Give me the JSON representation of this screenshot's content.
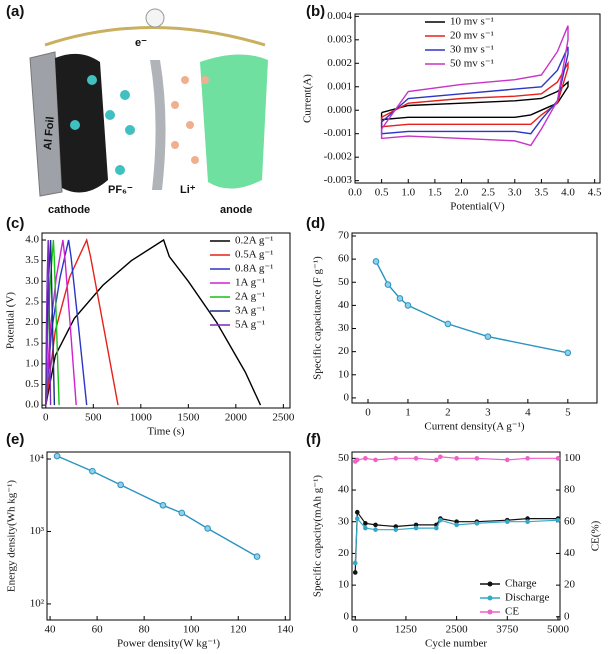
{
  "schematic": {
    "panel_label": "(a)",
    "foil": "Al Foil",
    "electron": "e⁻",
    "anion": "PF₆⁻",
    "cation": "Li⁺",
    "cathode": "cathode",
    "anode": "anode"
  },
  "chart_data": [
    {
      "type": "line",
      "panel_label": "(b)",
      "x_label": "Potential(V)",
      "y_label": "Current(A)",
      "legend": "upper left",
      "xlim": [
        0,
        4.6
      ],
      "ylim": [
        -0.0031,
        0.0041
      ],
      "xticks": [
        {
          "value": 0,
          "label": "0.0"
        },
        0.5,
        {
          "value": 1,
          "label": "1.0"
        },
        1.5,
        {
          "value": 2,
          "label": "2.0"
        },
        2.5,
        {
          "value": 3,
          "label": "3.0"
        },
        3.5,
        {
          "value": 4,
          "label": "4.0"
        },
        4.5
      ],
      "yticks": [
        -0.003,
        -0.002,
        -0.001,
        {
          "value": 0,
          "label": "0.000"
        },
        0.001,
        0.002,
        0.003,
        0.004
      ],
      "series": [
        {
          "name": "10 mv s⁻¹",
          "color": "#000000",
          "x": [
            0.5,
            1,
            2,
            3,
            3.5,
            3.8,
            4,
            4,
            3.8,
            3.5,
            3.3,
            3,
            2,
            1,
            0.5,
            0.5
          ],
          "values": [
            -0.0001,
            0.0002,
            0.0003,
            0.0004,
            0.0005,
            0.0008,
            0.0012,
            0.001,
            0.0003,
            0,
            -0.0002,
            -0.0003,
            -0.0003,
            -0.0003,
            -0.0004,
            -0.0001
          ]
        },
        {
          "name": "20 mv s⁻¹",
          "color": "#e8201c",
          "x": [
            0.5,
            1,
            2,
            3,
            3.5,
            3.8,
            4,
            4,
            3.8,
            3.5,
            3.3,
            3,
            2,
            1,
            0.5,
            0.5
          ],
          "values": [
            -0.0003,
            0.0003,
            0.0005,
            0.0006,
            0.0007,
            0.0012,
            0.002,
            0.0018,
            0.0003,
            -0.0002,
            -0.0006,
            -0.0006,
            -0.0006,
            -0.0006,
            -0.0007,
            -0.0003
          ]
        },
        {
          "name": "30 mv s⁻¹",
          "color": "#2b36c8",
          "x": [
            0.5,
            1,
            2,
            3,
            3.5,
            3.8,
            4,
            4,
            3.8,
            3.5,
            3.3,
            3,
            2,
            1,
            0.5,
            0.5
          ],
          "values": [
            -0.0005,
            0.0005,
            0.0007,
            0.0009,
            0.001,
            0.0017,
            0.0027,
            0.0024,
            0.0004,
            -0.0004,
            -0.001,
            -0.0009,
            -0.0009,
            -0.0009,
            -0.001,
            -0.0005
          ]
        },
        {
          "name": "50 mv s⁻¹",
          "color": "#c832c8",
          "x": [
            0.5,
            1,
            2,
            3,
            3.5,
            3.8,
            4,
            4,
            3.8,
            3.5,
            3.3,
            3,
            2,
            1,
            0.5,
            0.5
          ],
          "values": [
            -0.0008,
            0.0008,
            0.0011,
            0.0013,
            0.0015,
            0.0025,
            0.0036,
            0.003,
            0.0004,
            -0.0008,
            -0.0015,
            -0.0013,
            -0.0012,
            -0.0011,
            -0.0012,
            -0.0008
          ]
        }
      ]
    },
    {
      "type": "line",
      "panel_label": "(c)",
      "x_label": "Time (s)",
      "y_label": "Potential (V)",
      "legend": "upper right",
      "xlim": [
        -40,
        2570
      ],
      "ylim": [
        -0.07,
        4.17
      ],
      "xticks": [
        0,
        500,
        1000,
        1500,
        2000,
        2500
      ],
      "yticks": [
        {
          "value": 0,
          "label": "0.0"
        },
        0.5,
        {
          "value": 1,
          "label": "1.0"
        },
        1.5,
        {
          "value": 2,
          "label": "2.0"
        },
        2.5,
        {
          "value": 3,
          "label": "3.0"
        },
        3.5,
        {
          "value": 4,
          "label": "4.0"
        }
      ],
      "series": [
        {
          "name": "0.2A g⁻¹",
          "color": "#000000",
          "x": [
            0,
            100,
            300,
            600,
            900,
            1240,
            1300,
            1500,
            1800,
            2100,
            2260
          ],
          "values": [
            0,
            1.2,
            2.1,
            2.9,
            3.5,
            4,
            3.6,
            3,
            2,
            0.8,
            0
          ]
        },
        {
          "name": "0.5A g⁻¹",
          "color": "#e8201c",
          "x": [
            0,
            100,
            250,
            430,
            470,
            600,
            760
          ],
          "values": [
            0,
            1.8,
            3.1,
            4,
            3.6,
            2,
            0
          ]
        },
        {
          "name": "0.8A g⁻¹",
          "color": "#2b36c8",
          "x": [
            0,
            60,
            150,
            240,
            265,
            340,
            430
          ],
          "values": [
            0,
            1.8,
            3.1,
            4,
            3.6,
            2,
            0
          ]
        },
        {
          "name": "1A g⁻¹",
          "color": "#d020d0",
          "x": [
            0,
            45,
            110,
            180,
            200,
            255,
            320
          ],
          "values": [
            0,
            1.8,
            3.1,
            4,
            3.6,
            2,
            0
          ]
        },
        {
          "name": "2A g⁻¹",
          "color": "#19c019",
          "x": [
            0,
            20,
            50,
            80,
            88,
            112,
            140
          ],
          "values": [
            0,
            1.8,
            3.1,
            4,
            3.6,
            2,
            0
          ]
        },
        {
          "name": "3A g⁻¹",
          "color": "#1a2a8a",
          "x": [
            0,
            12,
            30,
            50,
            55,
            70,
            90
          ],
          "values": [
            0,
            1.8,
            3.1,
            4,
            3.6,
            2,
            0
          ]
        },
        {
          "name": "5A g⁻¹",
          "color": "#7a2ac0",
          "x": [
            0,
            6,
            15,
            25,
            28,
            38,
            50
          ],
          "values": [
            0,
            1.8,
            3.1,
            4,
            3.6,
            2,
            0
          ]
        }
      ]
    },
    {
      "type": "line",
      "panel_label": "(d)",
      "x_label": "Current density(A g⁻¹)",
      "y_label": "Specific capacitance (F g⁻¹)",
      "markers": true,
      "xlim": [
        -0.4,
        5.73
      ],
      "ylim": [
        -2.2,
        71.3
      ],
      "xticks": [
        0,
        1,
        2,
        3,
        4,
        5
      ],
      "yticks": [
        0,
        10,
        20,
        30,
        40,
        50,
        60,
        70
      ],
      "series": [
        {
          "color": "#2a93c0",
          "x": [
            0.2,
            0.5,
            0.8,
            1,
            2,
            3,
            5
          ],
          "values": [
            59,
            49,
            43,
            40,
            32,
            26.5,
            19.5
          ]
        }
      ]
    },
    {
      "type": "line",
      "panel_label": "(e)",
      "x_label": "Power density(W kg⁻¹)",
      "y_label": "Energy density(Wh kg⁻¹)",
      "markers": true,
      "yscale": "log",
      "xlim": [
        38.7,
        142
      ],
      "ylim": [
        60,
        12500
      ],
      "xticks": [
        40,
        60,
        80,
        100,
        120,
        140
      ],
      "yticks": [
        {
          "value": 100,
          "label": "10²"
        },
        {
          "value": 1000,
          "label": "10³"
        },
        {
          "value": 10000,
          "label": "10⁴"
        }
      ],
      "series": [
        {
          "color": "#2a93c0",
          "x": [
            43,
            58,
            70,
            88,
            96,
            107,
            128
          ],
          "values": [
            11000,
            6800,
            4400,
            2300,
            1800,
            1100,
            450
          ]
        }
      ]
    },
    {
      "type": "scatter",
      "panel_label": "(f)",
      "x_label": "Cycle number",
      "y_label": "Specific capacity(mAh g⁻¹)",
      "y2_label": "CE(%)",
      "legend": "lower right",
      "xlim": [
        -80,
        5050
      ],
      "ylim": [
        -1,
        52
      ],
      "y2lim": [
        -2,
        104
      ],
      "xticks": [
        0,
        1250,
        2500,
        3750,
        5000
      ],
      "yticks": [
        0,
        10,
        20,
        30,
        40,
        50
      ],
      "y2ticks": [
        0,
        20,
        40,
        60,
        80,
        100
      ],
      "series": [
        {
          "name": "Charge",
          "color": "#111111",
          "x": [
            0,
            50,
            250,
            500,
            1000,
            1500,
            2000,
            2100,
            2500,
            3000,
            3750,
            4250,
            5000
          ],
          "values": [
            14,
            33,
            29.5,
            29,
            28.5,
            29,
            29,
            31,
            30,
            30,
            30.5,
            31,
            31
          ]
        },
        {
          "name": "Discharge",
          "color": "#33a8c8",
          "x": [
            0,
            50,
            250,
            500,
            1000,
            1500,
            2000,
            2100,
            2500,
            3000,
            3750,
            4250,
            5000
          ],
          "values": [
            17,
            31,
            28,
            27.5,
            27.5,
            28,
            28,
            30.5,
            29,
            29.5,
            30,
            30,
            30.5
          ]
        },
        {
          "name": "CE",
          "color": "#f060c8",
          "axis": "y2",
          "x": [
            0,
            50,
            250,
            500,
            1000,
            1500,
            2000,
            2100,
            2500,
            3000,
            3750,
            4250,
            5000
          ],
          "values": [
            98,
            99,
            100,
            99,
            100,
            100,
            99,
            101,
            100,
            100,
            99,
            100,
            100
          ]
        }
      ]
    }
  ]
}
